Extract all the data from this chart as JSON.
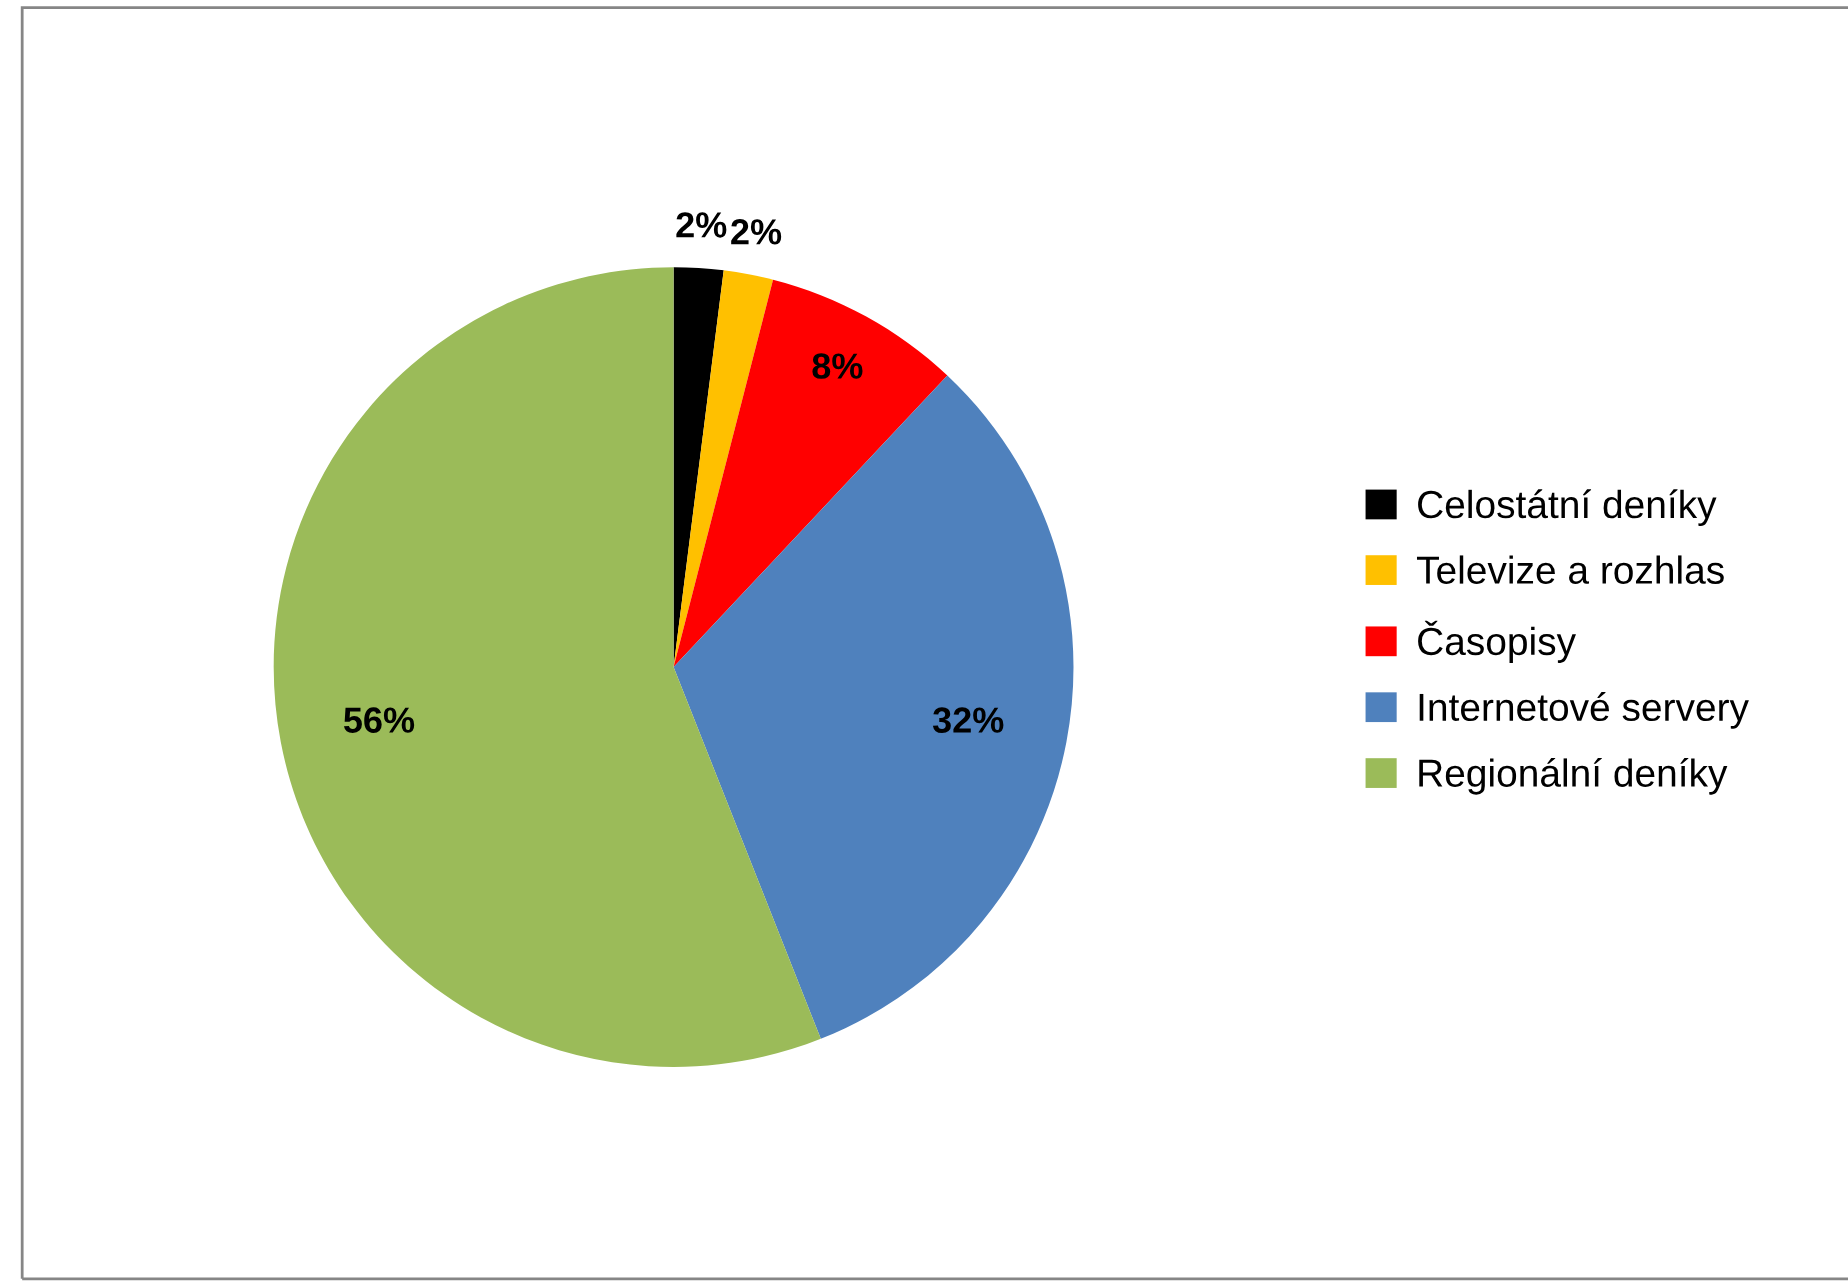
{
  "chart_data": {
    "type": "pie",
    "categories": [
      "Celostátní deníky",
      "Televize a rozhlas",
      "Časopisy",
      "Internetové servery",
      "Regionální deníky"
    ],
    "values": [
      2,
      2,
      8,
      32,
      56
    ],
    "colors": [
      "#000000",
      "#ffc000",
      "#ff0000",
      "#4f81bd",
      "#9bbb59"
    ],
    "value_labels": [
      "2%",
      "2%",
      "8%",
      "32%",
      "56%"
    ],
    "legend": "right"
  }
}
